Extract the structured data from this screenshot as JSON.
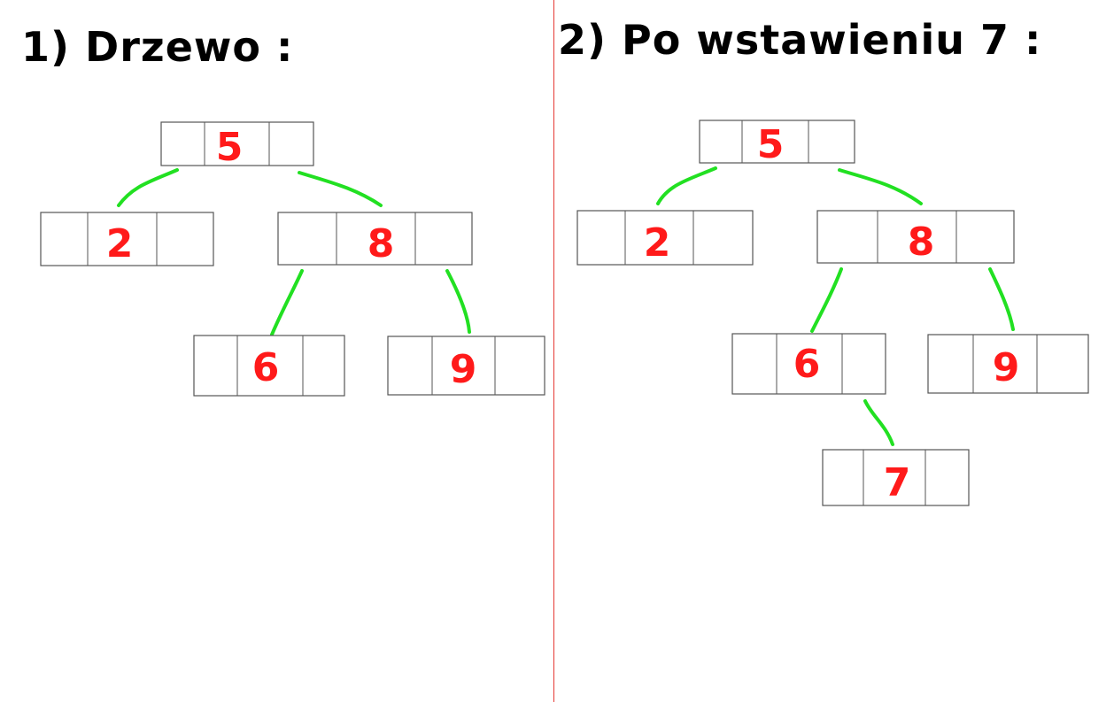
{
  "diagram": {
    "colors": {
      "edge": "#22e022",
      "value": "#ff1a1a",
      "divider": "#e53935",
      "box": "#555555"
    },
    "panels": [
      {
        "id": "before",
        "title": "1) Drzewo :",
        "nodes": [
          {
            "id": "n5",
            "value": "5"
          },
          {
            "id": "n2",
            "value": "2"
          },
          {
            "id": "n8",
            "value": "8"
          },
          {
            "id": "n6",
            "value": "6"
          },
          {
            "id": "n9",
            "value": "9"
          }
        ],
        "edges": [
          {
            "from": "5",
            "to": "2"
          },
          {
            "from": "5",
            "to": "8"
          },
          {
            "from": "8",
            "to": "6"
          },
          {
            "from": "8",
            "to": "9"
          }
        ]
      },
      {
        "id": "after",
        "title": "2) Po wstawieniu 7 :",
        "nodes": [
          {
            "id": "n5",
            "value": "5"
          },
          {
            "id": "n2",
            "value": "2"
          },
          {
            "id": "n8",
            "value": "8"
          },
          {
            "id": "n6",
            "value": "6"
          },
          {
            "id": "n9",
            "value": "9"
          },
          {
            "id": "n7",
            "value": "7"
          }
        ],
        "edges": [
          {
            "from": "5",
            "to": "2"
          },
          {
            "from": "5",
            "to": "8"
          },
          {
            "from": "8",
            "to": "6"
          },
          {
            "from": "8",
            "to": "9"
          },
          {
            "from": "6",
            "to": "7"
          }
        ]
      }
    ]
  }
}
